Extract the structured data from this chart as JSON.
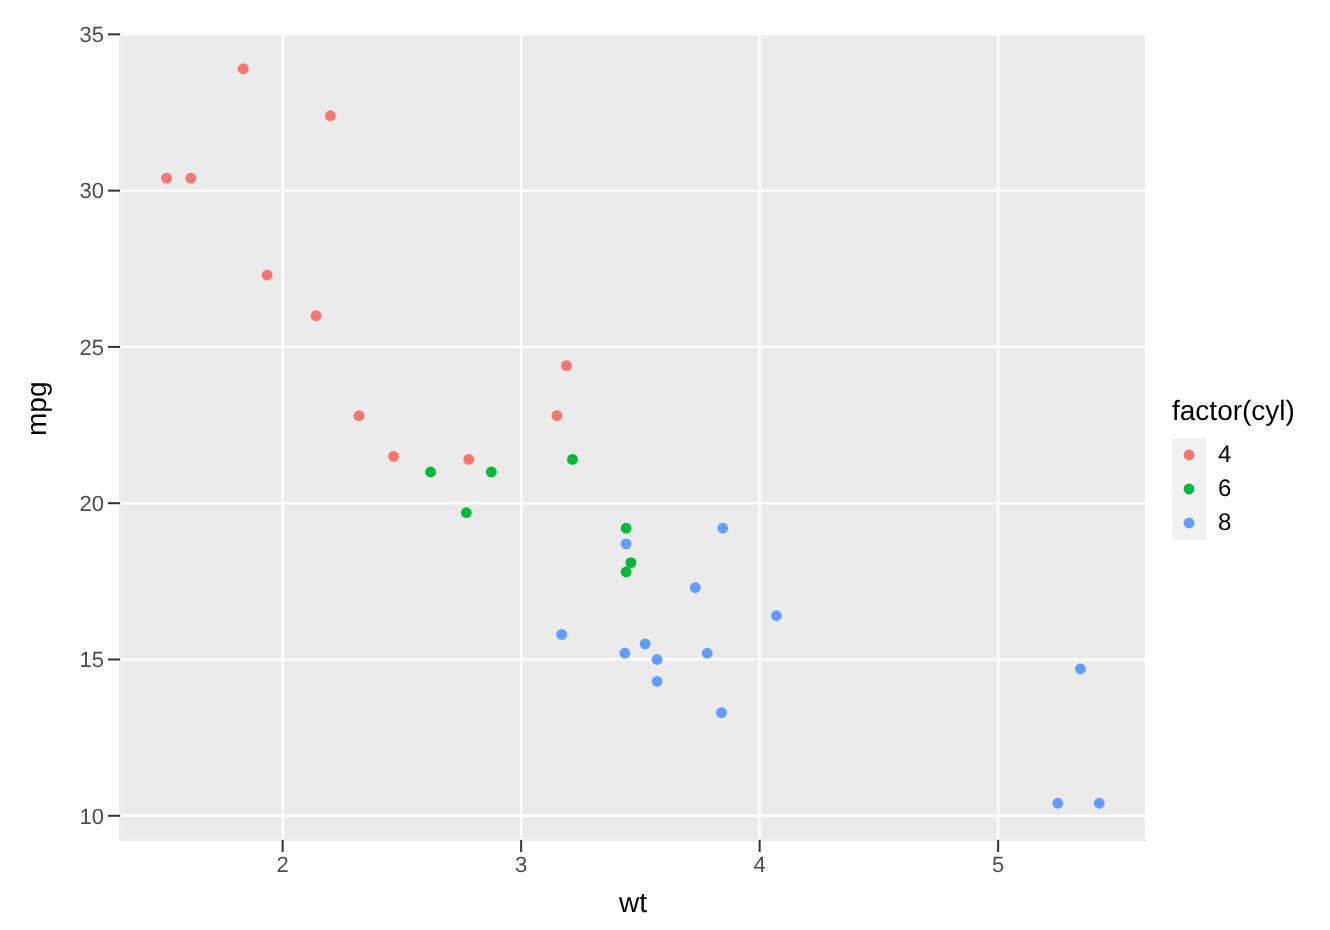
{
  "chart_data": {
    "type": "scatter",
    "xlabel": "wt",
    "ylabel": "mpg",
    "legend_title": "factor(cyl)",
    "legend": "right",
    "grid": true,
    "marker": "circle",
    "xlim": [
      1.318,
      5.62
    ],
    "ylim": [
      9.225,
      35.075
    ],
    "xticks": [
      2,
      3,
      4,
      5
    ],
    "yticks": [
      10,
      15,
      20,
      25,
      30,
      35
    ],
    "series": [
      {
        "name": "4",
        "color": "#f8766d",
        "x": [
          2.32,
          3.19,
          3.15,
          2.2,
          1.615,
          1.835,
          2.465,
          1.935,
          2.14,
          1.513,
          2.78
        ],
        "values": [
          22.8,
          24.4,
          22.8,
          32.4,
          30.4,
          33.9,
          21.5,
          27.3,
          26.0,
          30.4,
          21.4
        ]
      },
      {
        "name": "6",
        "color": "#00ba38",
        "x": [
          2.62,
          2.875,
          3.215,
          3.46,
          3.44,
          3.44,
          2.77
        ],
        "values": [
          21.0,
          21.0,
          21.4,
          18.1,
          19.2,
          17.8,
          19.7
        ]
      },
      {
        "name": "8",
        "color": "#619cff",
        "x": [
          3.44,
          3.57,
          4.07,
          3.73,
          3.78,
          5.25,
          5.424,
          5.345,
          3.52,
          3.435,
          3.84,
          3.845,
          3.17,
          3.57
        ],
        "values": [
          18.7,
          14.3,
          16.4,
          17.3,
          15.2,
          10.4,
          10.4,
          14.7,
          15.5,
          15.2,
          13.3,
          19.2,
          15.8,
          15.0
        ]
      }
    ]
  }
}
